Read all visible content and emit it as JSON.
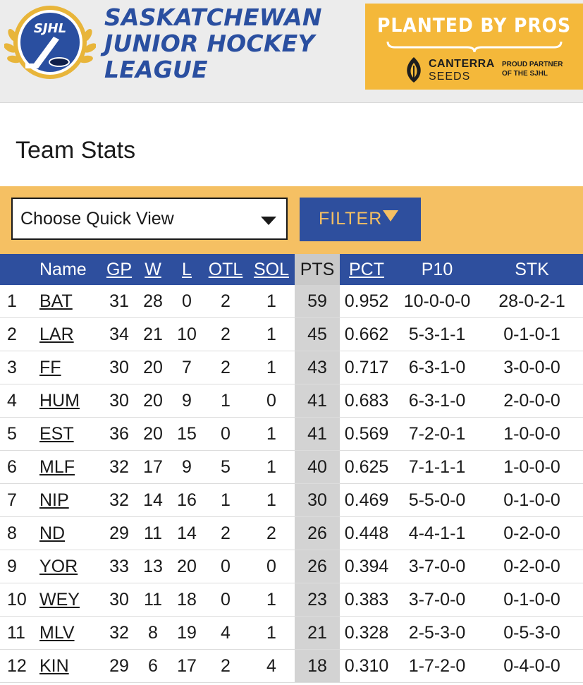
{
  "header": {
    "logo_text": "SJHL",
    "league_name": [
      "SASKATCHEWAN",
      "JUNIOR HOCKEY",
      "LEAGUE"
    ],
    "sponsor": {
      "tagline": "PLANTED BY PROS",
      "brand": "CANTERRA",
      "brand_sub": "SEEDS",
      "partner": "PROUD PARTNER OF THE SJHL"
    }
  },
  "page_title": "Team Stats",
  "filter": {
    "quick_view": "Choose Quick View",
    "button_label": "FILTER"
  },
  "colors": {
    "primary_blue": "#2e4f9e",
    "accent_gold": "#f5c063",
    "sponsor_gold": "#f4b83a"
  },
  "table": {
    "columns": [
      "Name",
      "GP",
      "W",
      "L",
      "OTL",
      "SOL",
      "PTS",
      "PCT",
      "P10",
      "STK"
    ],
    "rows": [
      [
        "1",
        "BAT",
        "31",
        "28",
        "0",
        "2",
        "1",
        "59",
        "0.952",
        "10-0-0-0",
        "28-0-2-1"
      ],
      [
        "2",
        "LAR",
        "34",
        "21",
        "10",
        "2",
        "1",
        "45",
        "0.662",
        "5-3-1-1",
        "0-1-0-1"
      ],
      [
        "3",
        "FF",
        "30",
        "20",
        "7",
        "2",
        "1",
        "43",
        "0.717",
        "6-3-1-0",
        "3-0-0-0"
      ],
      [
        "4",
        "HUM",
        "30",
        "20",
        "9",
        "1",
        "0",
        "41",
        "0.683",
        "6-3-1-0",
        "2-0-0-0"
      ],
      [
        "5",
        "EST",
        "36",
        "20",
        "15",
        "0",
        "1",
        "41",
        "0.569",
        "7-2-0-1",
        "1-0-0-0"
      ],
      [
        "6",
        "MLF",
        "32",
        "17",
        "9",
        "5",
        "1",
        "40",
        "0.625",
        "7-1-1-1",
        "1-0-0-0"
      ],
      [
        "7",
        "NIP",
        "32",
        "14",
        "16",
        "1",
        "1",
        "30",
        "0.469",
        "5-5-0-0",
        "0-1-0-0"
      ],
      [
        "8",
        "ND",
        "29",
        "11",
        "14",
        "2",
        "2",
        "26",
        "0.448",
        "4-4-1-1",
        "0-2-0-0"
      ],
      [
        "9",
        "YOR",
        "33",
        "13",
        "20",
        "0",
        "0",
        "26",
        "0.394",
        "3-7-0-0",
        "0-2-0-0"
      ],
      [
        "10",
        "WEY",
        "30",
        "11",
        "18",
        "0",
        "1",
        "23",
        "0.383",
        "3-7-0-0",
        "0-1-0-0"
      ],
      [
        "11",
        "MLV",
        "32",
        "8",
        "19",
        "4",
        "1",
        "21",
        "0.328",
        "2-5-3-0",
        "0-5-3-0"
      ],
      [
        "12",
        "KIN",
        "29",
        "6",
        "17",
        "2",
        "4",
        "18",
        "0.310",
        "1-7-2-0",
        "0-4-0-0"
      ]
    ]
  }
}
